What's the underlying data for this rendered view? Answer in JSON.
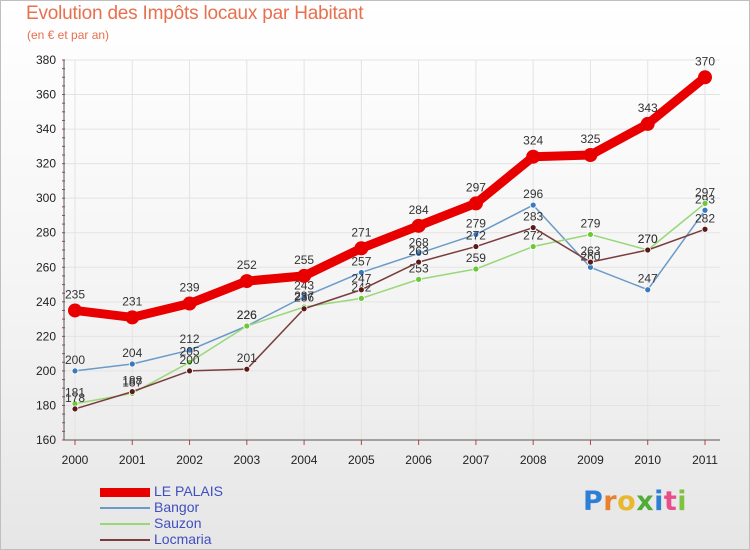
{
  "header": {
    "title": "Evolution des Impôts locaux par Habitant",
    "subtitle": "(en € et par an)"
  },
  "logo": {
    "letters": [
      "P",
      "r",
      "o",
      "x",
      "i",
      "t",
      "i"
    ],
    "colors": [
      "#2d7fd6",
      "#e8802e",
      "#e8b92e",
      "#4fae3a",
      "#2d7fd6",
      "#e84e8a",
      "#7fc241"
    ]
  },
  "chart_data": {
    "type": "line",
    "title": "Evolution des Impôts locaux par Habitant",
    "subtitle": "(en € et par an)",
    "xlabel": "",
    "ylabel": "",
    "x": [
      "2000",
      "2001",
      "2002",
      "2003",
      "2004",
      "2005",
      "2006",
      "2007",
      "2008",
      "2009",
      "2010",
      "2011"
    ],
    "ylim": [
      160,
      380
    ],
    "yticks": [
      160,
      180,
      200,
      220,
      240,
      260,
      280,
      300,
      320,
      340,
      360,
      380
    ],
    "grid": true,
    "legend_position": "bottom-left",
    "series": [
      {
        "name": "LE PALAIS",
        "color": "#e80000",
        "marker_color": "#e80000",
        "values": [
          235,
          231,
          239,
          252,
          255,
          271,
          284,
          297,
          324,
          325,
          343,
          370
        ]
      },
      {
        "name": "Bangor",
        "color": "#6a9ac8",
        "marker_color": "#3a78c0",
        "values": [
          200,
          204,
          212,
          226,
          243,
          257,
          268,
          279,
          296,
          260,
          247,
          293
        ]
      },
      {
        "name": "Sauzon",
        "color": "#98d878",
        "marker_color": "#6cc838",
        "values": [
          181,
          187,
          205,
          226,
          237,
          242,
          253,
          259,
          272,
          279,
          270,
          297
        ]
      },
      {
        "name": "Locmaria",
        "color": "#7a3c3c",
        "marker_color": "#5a1a1a",
        "values": [
          178,
          188,
          200,
          201,
          236,
          247,
          263,
          272,
          283,
          263,
          270,
          282
        ]
      }
    ]
  }
}
